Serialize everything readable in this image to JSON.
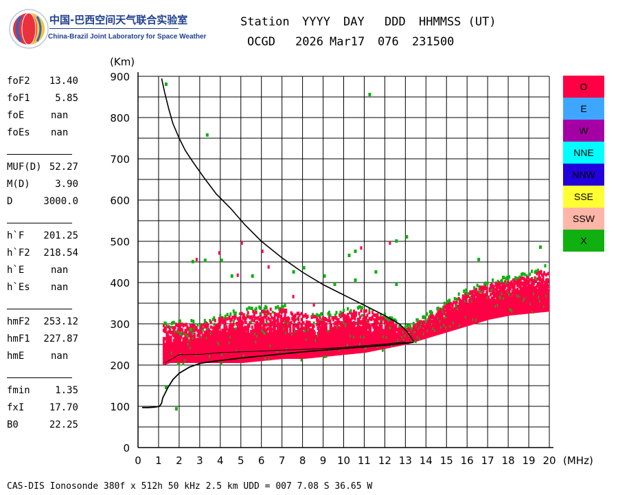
{
  "header": {
    "lab_cn": "中国-巴西空间天气联合实验室",
    "lab_en": "China-Brazil Joint Laboratory for Space Weather",
    "col_labels": [
      "Station",
      "YYYY",
      "DAY",
      "DDD",
      "HHMMSS (UT)"
    ],
    "station": "OCGD",
    "year": "2026",
    "day": "Mar17",
    "ddd": "076",
    "time": "231500"
  },
  "params": [
    {
      "label": "foF2",
      "value": "13.40"
    },
    {
      "label": "foF1",
      "value": "5.85"
    },
    {
      "label": "foE",
      "value": "nan"
    },
    {
      "label": "foEs",
      "value": "nan"
    },
    {
      "label": "MUF(D)",
      "value": "52.27"
    },
    {
      "label": "M(D)",
      "value": "3.90"
    },
    {
      "label": "D",
      "value": "3000.0"
    },
    {
      "label": "h`F",
      "value": "201.25"
    },
    {
      "label": "h`F2",
      "value": "218.54"
    },
    {
      "label": "h`E",
      "value": "nan"
    },
    {
      "label": "h`Es",
      "value": "nan"
    },
    {
      "label": "hmF2",
      "value": "253.12"
    },
    {
      "label": "hmF1",
      "value": "227.87"
    },
    {
      "label": "hmE",
      "value": "nan"
    },
    {
      "label": "fmin",
      "value": "1.35"
    },
    {
      "label": "fxI",
      "value": "17.70"
    },
    {
      "label": "B0",
      "value": "22.25"
    }
  ],
  "legend": [
    {
      "name": "O",
      "color": "#ff0044"
    },
    {
      "name": "E",
      "color": "#3fa6ff"
    },
    {
      "name": "W",
      "color": "#a500a5"
    },
    {
      "name": "NNE",
      "color": "#00ffff"
    },
    {
      "name": "NNW",
      "color": "#2200dd"
    },
    {
      "name": "SSE",
      "color": "#ffff33"
    },
    {
      "name": "SSW",
      "color": "#ffb6a8"
    },
    {
      "name": "X",
      "color": "#10b010"
    }
  ],
  "footer": "CAS-DIS Ionosonde 380f x 512h 50 kHz 2.5 km UDD = 007 7.08 S 36.65 W",
  "chart_data": {
    "type": "scatter",
    "xlabel": "(MHz)",
    "ylabel": "(Km)",
    "xlim": [
      0,
      20
    ],
    "ylim": [
      0,
      900
    ],
    "xticks": [
      0,
      1,
      2,
      3,
      4,
      5,
      6,
      7,
      8,
      9,
      10,
      11,
      12,
      13,
      14,
      15,
      16,
      17,
      18,
      19,
      20
    ],
    "yticks": [
      0,
      100,
      200,
      300,
      400,
      500,
      600,
      700,
      800,
      900
    ],
    "grid": true,
    "legend_position": "right",
    "o_trace_band": [
      [
        1.2,
        200,
        300
      ],
      [
        1.5,
        205,
        300
      ],
      [
        2.0,
        205,
        305
      ],
      [
        3.0,
        205,
        300
      ],
      [
        4.0,
        205,
        320
      ],
      [
        5.0,
        205,
        330
      ],
      [
        6.0,
        210,
        340
      ],
      [
        7.0,
        215,
        340
      ],
      [
        8.0,
        215,
        330
      ],
      [
        9.0,
        220,
        320
      ],
      [
        10.0,
        225,
        330
      ],
      [
        11.0,
        230,
        340
      ],
      [
        12.0,
        240,
        320
      ],
      [
        13.0,
        250,
        290
      ],
      [
        14.0,
        265,
        320
      ],
      [
        15.0,
        280,
        350
      ],
      [
        16.0,
        295,
        380
      ],
      [
        17.0,
        310,
        400
      ],
      [
        18.0,
        320,
        410
      ],
      [
        19.0,
        325,
        420
      ],
      [
        20.0,
        330,
        440
      ]
    ],
    "x_trace_points": [
      [
        1.3,
        885
      ],
      [
        3.3,
        762
      ],
      [
        11.2,
        860
      ],
      [
        1.3,
        150
      ],
      [
        1.8,
        98
      ],
      [
        2.6,
        455
      ],
      [
        3.2,
        458
      ],
      [
        4.0,
        458
      ],
      [
        4.5,
        420
      ],
      [
        5.5,
        420
      ],
      [
        7.5,
        430
      ],
      [
        10.2,
        470
      ],
      [
        10.5,
        480
      ],
      [
        12.5,
        505
      ],
      [
        13.0,
        515
      ],
      [
        8.0,
        440
      ],
      [
        9.0,
        420
      ],
      [
        2.0,
        280
      ],
      [
        2.5,
        290
      ],
      [
        9.5,
        400
      ],
      [
        10.5,
        410
      ],
      [
        11.5,
        430
      ],
      [
        12.5,
        400
      ],
      [
        16.5,
        460
      ],
      [
        19.5,
        490
      ]
    ],
    "o_extra_points": [
      [
        2.8,
        460
      ],
      [
        3.9,
        476
      ],
      [
        5.0,
        500
      ],
      [
        6.0,
        480
      ],
      [
        10.8,
        488
      ],
      [
        12.2,
        500
      ],
      [
        4.8,
        422
      ],
      [
        6.3,
        442
      ],
      [
        7.5,
        370
      ],
      [
        8.5,
        350
      ]
    ],
    "profile_curve": [
      [
        1.15,
        895
      ],
      [
        1.3,
        860
      ],
      [
        1.5,
        820
      ],
      [
        1.7,
        785
      ],
      [
        2.0,
        750
      ],
      [
        2.3,
        720
      ],
      [
        2.7,
        690
      ],
      [
        3.2,
        655
      ],
      [
        3.8,
        615
      ],
      [
        4.5,
        580
      ],
      [
        5.2,
        540
      ],
      [
        6.0,
        500
      ],
      [
        7.0,
        460
      ],
      [
        8.0,
        425
      ],
      [
        9.0,
        395
      ],
      [
        10.0,
        370
      ],
      [
        11.0,
        345
      ],
      [
        12.0,
        320
      ],
      [
        12.7,
        300
      ],
      [
        13.1,
        280
      ],
      [
        13.4,
        258
      ]
    ],
    "trace_curve": [
      [
        0.2,
        97
      ],
      [
        0.5,
        97
      ],
      [
        0.8,
        98
      ],
      [
        1.05,
        100
      ],
      [
        1.15,
        108
      ],
      [
        1.2,
        120
      ],
      [
        1.3,
        130
      ],
      [
        1.45,
        145
      ],
      [
        1.7,
        165
      ],
      [
        2.0,
        180
      ],
      [
        2.5,
        195
      ],
      [
        3.0,
        204
      ],
      [
        3.5,
        208
      ],
      [
        4.0,
        211
      ],
      [
        5.0,
        217
      ],
      [
        6.0,
        222
      ],
      [
        7.0,
        227
      ],
      [
        8.0,
        232
      ],
      [
        9.0,
        236
      ],
      [
        10.0,
        240
      ],
      [
        11.0,
        244
      ],
      [
        12.0,
        248
      ],
      [
        13.0,
        253
      ],
      [
        13.4,
        255
      ]
    ],
    "inner_curve": [
      [
        1.3,
        205
      ],
      [
        2.0,
        225
      ],
      [
        3.0,
        226
      ],
      [
        4.0,
        230
      ],
      [
        5.0,
        232
      ],
      [
        6.0,
        234
      ],
      [
        7.0,
        236
      ],
      [
        8.0,
        238
      ],
      [
        9.0,
        240
      ],
      [
        10.0,
        243
      ],
      [
        11.0,
        247
      ],
      [
        12.0,
        251
      ],
      [
        13.0,
        256
      ]
    ]
  }
}
